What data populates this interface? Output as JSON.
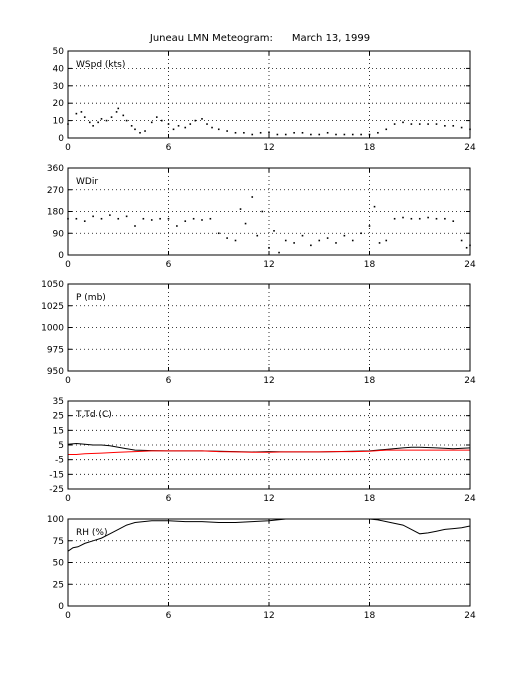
{
  "figure_title": "Juneau LMN Meteogram:      March 13, 1999",
  "colors": {
    "axes": "#000000",
    "grid": "#000000",
    "temperature": "#000000",
    "dewpoint": "#ff0000"
  },
  "chart_data": [
    {
      "type": "scatter",
      "label": "WSpd (kts)",
      "xlim": [
        0,
        24
      ],
      "ylim": [
        0,
        50
      ],
      "xticks": [
        0,
        6,
        12,
        18,
        24
      ],
      "yticks": [
        0,
        10,
        20,
        30,
        40,
        50
      ],
      "grid": true,
      "series": [
        {
          "x": [
            0.0,
            0.5,
            0.8,
            1.0,
            1.3,
            1.5,
            1.8,
            2.0,
            2.3,
            2.6,
            2.9,
            3.0,
            3.3,
            3.5,
            3.8,
            4.0,
            4.3,
            4.6,
            5.0,
            5.3,
            5.6,
            6.0,
            6.3,
            6.6,
            7.0,
            7.3,
            7.6,
            8.0,
            8.3,
            8.6,
            9.0,
            9.5,
            10.0,
            10.5,
            11.0,
            11.5,
            12.0,
            12.5,
            13.0,
            13.5,
            14.0,
            14.5,
            15.0,
            15.5,
            16.0,
            16.5,
            17.0,
            17.5,
            18.0,
            18.5,
            19.0,
            19.5,
            20.0,
            20.5,
            21.0,
            21.5,
            22.0,
            22.5,
            23.0,
            23.5,
            24.0
          ],
          "values": [
            8,
            14,
            15,
            12,
            9,
            7,
            9,
            11,
            10,
            12,
            15,
            17,
            13,
            10,
            7,
            5,
            3,
            4,
            9,
            12,
            10,
            8,
            5,
            7,
            6,
            8,
            10,
            11,
            8,
            6,
            5,
            4,
            3,
            3,
            2,
            3,
            3,
            2,
            2,
            3,
            3,
            2,
            2,
            3,
            2,
            2,
            2,
            2,
            2,
            3,
            5,
            8,
            9,
            8,
            8,
            8,
            8,
            7,
            7,
            6,
            5
          ]
        }
      ]
    },
    {
      "type": "scatter",
      "label": "WDir",
      "xlim": [
        0,
        24
      ],
      "ylim": [
        0,
        360
      ],
      "xticks": [
        0,
        6,
        12,
        18,
        24
      ],
      "yticks": [
        0,
        90,
        180,
        270,
        360
      ],
      "grid": true,
      "series": [
        {
          "x": [
            0.0,
            0.5,
            1.0,
            1.5,
            2.0,
            2.5,
            3.0,
            3.5,
            4.0,
            4.5,
            5.0,
            5.5,
            6.0,
            6.5,
            7.0,
            7.5,
            8.0,
            8.5,
            9.0,
            9.5,
            10.0,
            10.3,
            10.6,
            11.0,
            11.3,
            11.6,
            12.0,
            12.3,
            12.6,
            13.0,
            13.5,
            14.0,
            14.5,
            15.0,
            15.5,
            16.0,
            16.5,
            17.0,
            17.5,
            18.0,
            18.3,
            18.6,
            19.0,
            19.5,
            20.0,
            20.5,
            21.0,
            21.5,
            22.0,
            22.5,
            23.0,
            23.5,
            23.8,
            24.0
          ],
          "values": [
            150,
            150,
            140,
            160,
            150,
            165,
            150,
            160,
            120,
            150,
            145,
            150,
            150,
            120,
            140,
            150,
            145,
            150,
            90,
            70,
            60,
            190,
            130,
            240,
            80,
            180,
            30,
            100,
            10,
            60,
            50,
            80,
            40,
            60,
            70,
            50,
            80,
            60,
            90,
            120,
            200,
            50,
            60,
            150,
            155,
            150,
            150,
            155,
            150,
            150,
            140,
            60,
            30,
            40
          ]
        }
      ]
    },
    {
      "type": "line",
      "label": "P (mb)",
      "xlim": [
        0,
        24
      ],
      "ylim": [
        950,
        1050
      ],
      "xticks": [
        0,
        6,
        12,
        18,
        24
      ],
      "yticks": [
        950,
        975,
        1000,
        1025,
        1050
      ],
      "grid": true,
      "series": []
    },
    {
      "type": "line",
      "label": "T,Td (C)",
      "xlim": [
        0,
        24
      ],
      "ylim": [
        -25,
        35
      ],
      "xticks": [
        0,
        6,
        12,
        18,
        24
      ],
      "yticks": [
        -25,
        -15,
        -5,
        5,
        15,
        25,
        35
      ],
      "grid": true,
      "series": [
        {
          "x": [
            0,
            0.5,
            1,
            1.5,
            2,
            2.5,
            3,
            3.5,
            4,
            5,
            6,
            7,
            8,
            9,
            10,
            11,
            12,
            13,
            14,
            15,
            16,
            17,
            18,
            19,
            20,
            20.5,
            21,
            22,
            23,
            24
          ],
          "values": [
            5.5,
            6,
            5.5,
            5,
            5,
            4.5,
            3.5,
            2.5,
            1.5,
            1.2,
            1,
            1,
            1,
            0.8,
            0.5,
            0.2,
            0.5,
            0.3,
            0.3,
            0.3,
            0.5,
            0.8,
            1,
            2,
            3,
            3.5,
            3.5,
            3,
            2.5,
            3
          ]
        },
        {
          "x": [
            0,
            0.5,
            1,
            2,
            3,
            4,
            5,
            6,
            7,
            8,
            9,
            10,
            11,
            12,
            13,
            14,
            15,
            16,
            17,
            18,
            19,
            20,
            21,
            22,
            23,
            24
          ],
          "values": [
            -1.5,
            -1.5,
            -1,
            -0.5,
            0,
            0.5,
            1,
            1,
            1,
            1,
            0.5,
            0.3,
            0,
            0,
            0.3,
            0.3,
            0.3,
            0.5,
            0.5,
            0.8,
            1.5,
            1.5,
            1.5,
            1.5,
            1.5,
            1.5
          ]
        }
      ]
    },
    {
      "type": "line",
      "label": "RH (%)",
      "xlim": [
        0,
        24
      ],
      "ylim": [
        0,
        100
      ],
      "xticks": [
        0,
        6,
        12,
        18,
        24
      ],
      "yticks": [
        0,
        25,
        50,
        75,
        100
      ],
      "grid": true,
      "series": [
        {
          "x": [
            0,
            0.3,
            0.6,
            1,
            1.5,
            2,
            2.5,
            3,
            3.5,
            4,
            4.5,
            5,
            6,
            7,
            8,
            9,
            10,
            11,
            12,
            13,
            14,
            15,
            16,
            17,
            18,
            18.5,
            19,
            19.5,
            20,
            20.5,
            21,
            21.5,
            22,
            22.5,
            23,
            23.5,
            24
          ],
          "values": [
            63,
            67,
            68,
            72,
            75,
            78,
            83,
            88,
            93,
            96,
            97,
            98,
            98,
            97,
            97,
            96,
            96,
            97,
            98,
            100,
            100,
            100,
            100,
            100,
            100,
            99,
            97,
            95,
            93,
            88,
            83,
            84,
            86,
            88,
            89,
            90,
            92
          ]
        }
      ]
    }
  ]
}
